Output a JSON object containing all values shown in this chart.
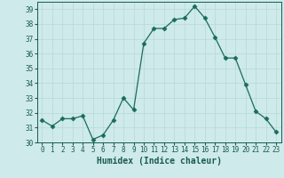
{
  "x": [
    0,
    1,
    2,
    3,
    4,
    5,
    6,
    7,
    8,
    9,
    10,
    11,
    12,
    13,
    14,
    15,
    16,
    17,
    18,
    19,
    20,
    21,
    22,
    23
  ],
  "y": [
    31.5,
    31.1,
    31.6,
    31.6,
    31.8,
    30.2,
    30.5,
    31.5,
    33.0,
    32.2,
    36.7,
    37.7,
    37.7,
    38.3,
    38.4,
    39.2,
    38.4,
    37.1,
    35.7,
    35.7,
    33.9,
    32.1,
    31.6,
    30.7
  ],
  "line_color": "#1a6b5e",
  "marker": "D",
  "marker_size": 2.5,
  "bg_color": "#ceeaea",
  "grid_color": "#b8d8d8",
  "xlabel": "Humidex (Indice chaleur)",
  "ylim": [
    30,
    39.5
  ],
  "xlim": [
    -0.5,
    23.5
  ],
  "yticks": [
    30,
    31,
    32,
    33,
    34,
    35,
    36,
    37,
    38,
    39
  ],
  "xticks": [
    0,
    1,
    2,
    3,
    4,
    5,
    6,
    7,
    8,
    9,
    10,
    11,
    12,
    13,
    14,
    15,
    16,
    17,
    18,
    19,
    20,
    21,
    22,
    23
  ],
  "tick_fontsize": 5.5,
  "xlabel_fontsize": 7,
  "tick_color": "#1a5a50",
  "spine_color": "#1a5a50"
}
